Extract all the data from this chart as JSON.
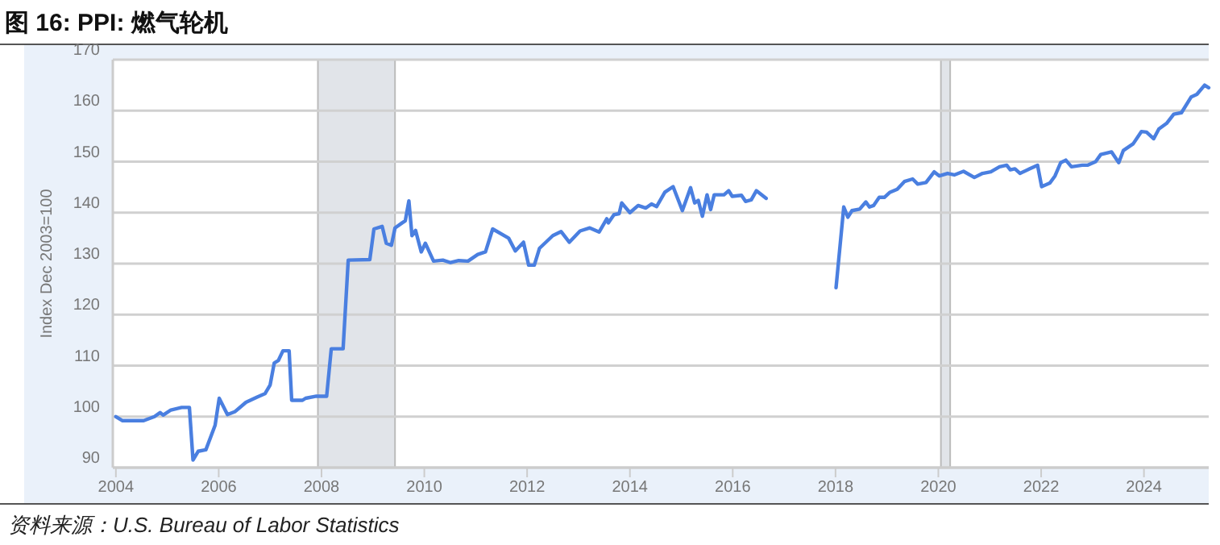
{
  "chart_data": {
    "type": "line",
    "title": "图 16: PPI:  燃气轮机",
    "ylabel": "Index Dec 2003=100",
    "annotations": [
      "资料来源：U.S. Bureau of Labor Statistics"
    ],
    "xlim": [
      2003.94,
      2025.26
    ],
    "xticks": [
      {
        "value": 2004,
        "label": "2004"
      },
      {
        "value": 2006,
        "label": "2006"
      },
      {
        "value": 2008,
        "label": "2008"
      },
      {
        "value": 2010,
        "label": "2010"
      },
      {
        "value": 2012,
        "label": "2012"
      },
      {
        "value": 2014,
        "label": "2014"
      },
      {
        "value": 2016,
        "label": "2016"
      },
      {
        "value": 2018,
        "label": "2018"
      },
      {
        "value": 2020,
        "label": "2020"
      },
      {
        "value": 2022,
        "label": "2022"
      },
      {
        "value": 2024,
        "label": "2024"
      }
    ],
    "ylim": [
      90,
      170
    ],
    "yticks": [
      90,
      100,
      110,
      120,
      130,
      140,
      150,
      160,
      170
    ],
    "grid": "y",
    "marker": "none",
    "line_style": "solid",
    "bands": [
      {
        "axis": "x",
        "from": 2007.93,
        "to": 2009.43,
        "color": "#e1e4e9"
      },
      {
        "axis": "x",
        "from": 2020.05,
        "to": 2020.23,
        "color": "#e1e4e9"
      }
    ],
    "series": [
      {
        "color": "#4a7fe0",
        "x": [
          2004.0,
          2004.13,
          2004.54,
          2004.75,
          2004.86,
          2004.92,
          2005.07,
          2005.28,
          2005.43,
          2005.5,
          2005.6,
          2005.75,
          2005.93,
          2006.01,
          2006.17,
          2006.32,
          2006.53,
          2006.74,
          2006.9,
          2007.0,
          2007.08,
          2007.16,
          2007.25,
          2007.37,
          2007.42,
          2007.63,
          2007.69,
          2007.9,
          2008.1,
          2008.19,
          2008.42,
          2008.52,
          2008.94,
          2009.02,
          2009.18,
          2009.26,
          2009.36,
          2009.43,
          2009.57,
          2009.63,
          2009.7,
          2009.76,
          2009.83,
          2009.94,
          2010.02,
          2010.18,
          2010.36,
          2010.51,
          2010.67,
          2010.85,
          2011.04,
          2011.19,
          2011.33,
          2011.64,
          2011.77,
          2011.93,
          2012.03,
          2012.14,
          2012.24,
          2012.5,
          2012.66,
          2012.82,
          2013.03,
          2013.22,
          2013.4,
          2013.55,
          2013.58,
          2013.69,
          2013.79,
          2013.84,
          2014.0,
          2014.16,
          2014.31,
          2014.42,
          2014.52,
          2014.68,
          2014.84,
          2015.02,
          2015.18,
          2015.26,
          2015.33,
          2015.41,
          2015.5,
          2015.57,
          2015.64,
          2015.83,
          2015.92,
          2015.99,
          2016.17,
          2016.25,
          2016.36,
          2016.46,
          2016.65
        ],
        "values": [
          100.0,
          99.2,
          99.2,
          100.0,
          100.8,
          100.3,
          101.3,
          101.8,
          101.8,
          91.5,
          93.2,
          93.5,
          98.3,
          103.6,
          100.4,
          101.0,
          102.8,
          103.8,
          104.5,
          106.2,
          110.5,
          111.0,
          112.9,
          112.9,
          103.2,
          103.2,
          103.6,
          104.0,
          104.0,
          113.3,
          113.3,
          130.7,
          130.8,
          136.8,
          137.3,
          134.0,
          133.6,
          137.0,
          138.0,
          138.4,
          142.3,
          135.5,
          136.5,
          132.3,
          134.0,
          130.5,
          130.7,
          130.2,
          130.6,
          130.5,
          131.8,
          132.3,
          136.8,
          135.0,
          132.5,
          134.2,
          129.7,
          129.7,
          133.0,
          135.5,
          136.3,
          134.2,
          136.4,
          137.0,
          136.2,
          138.8,
          138.0,
          139.6,
          139.8,
          141.9,
          140.0,
          141.4,
          140.9,
          141.7,
          141.2,
          144.0,
          145.1,
          140.4,
          144.9,
          141.9,
          142.4,
          139.3,
          143.5,
          140.6,
          143.5,
          143.5,
          144.3,
          143.2,
          143.4,
          142.2,
          142.5,
          144.3,
          142.8
        ]
      },
      {
        "color": "#4a7fe0",
        "x": [
          2018.01,
          2018.16,
          2018.24,
          2018.32,
          2018.47,
          2018.59,
          2018.66,
          2018.74,
          2018.85,
          2018.95,
          2019.06,
          2019.2,
          2019.34,
          2019.5,
          2019.6,
          2019.76,
          2019.92,
          2020.02,
          2020.18,
          2020.31,
          2020.49,
          2020.7,
          2020.86,
          2021.02,
          2021.19,
          2021.33,
          2021.4,
          2021.49,
          2021.59,
          2021.78,
          2021.93,
          2022.01,
          2022.17,
          2022.27,
          2022.38,
          2022.48,
          2022.59,
          2022.8,
          2022.9,
          2023.06,
          2023.16,
          2023.37,
          2023.51,
          2023.6,
          2023.79,
          2023.95,
          2024.05,
          2024.19,
          2024.29,
          2024.44,
          2024.58,
          2024.73,
          2024.92,
          2025.03,
          2025.18,
          2025.26
        ],
        "values": [
          125.3,
          141.1,
          139.1,
          140.4,
          140.7,
          142.1,
          141.1,
          141.4,
          143.0,
          143.0,
          144.0,
          144.6,
          146.1,
          146.6,
          145.6,
          145.9,
          148.0,
          147.2,
          147.7,
          147.4,
          148.1,
          146.9,
          147.7,
          148.0,
          149.0,
          149.3,
          148.4,
          148.6,
          147.7,
          148.6,
          149.3,
          145.1,
          145.8,
          147.2,
          149.8,
          150.3,
          149.0,
          149.3,
          149.3,
          150.0,
          151.4,
          151.9,
          149.8,
          152.2,
          153.5,
          155.9,
          155.8,
          154.5,
          156.4,
          157.5,
          159.3,
          159.6,
          162.7,
          163.2,
          165.0,
          164.5
        ]
      }
    ]
  }
}
